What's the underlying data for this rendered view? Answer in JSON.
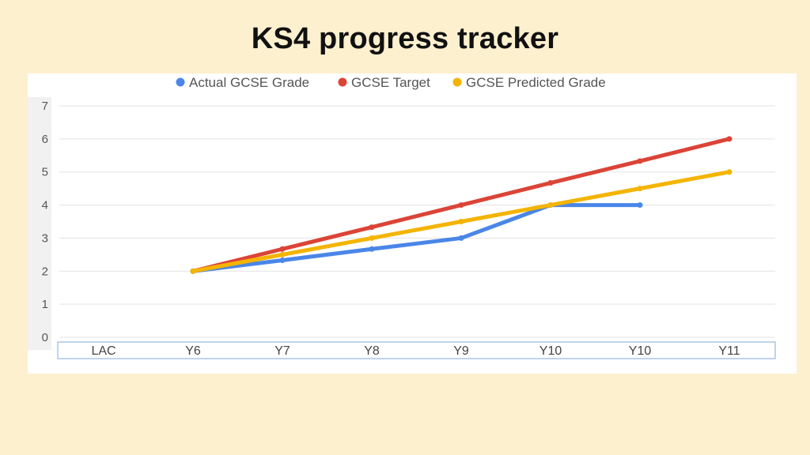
{
  "slide": {
    "title": "KS4 progress tracker"
  },
  "chart_data": {
    "type": "line",
    "categories": [
      "LAC",
      "Y6",
      "Y7",
      "Y8",
      "Y9",
      "Y10",
      "Y10",
      "Y11"
    ],
    "ylim": [
      0,
      7
    ],
    "yticks": [
      0,
      1,
      2,
      3,
      4,
      5,
      6,
      7
    ],
    "grid": true,
    "legend_position": "top-center",
    "series": [
      {
        "name": "Actual GCSE Grade",
        "color": "#4a86e8",
        "values": [
          null,
          2,
          2.33,
          2.67,
          3,
          4,
          4,
          null
        ]
      },
      {
        "name": "GCSE Target",
        "color": "#db4437",
        "values": [
          null,
          2,
          2.67,
          3.33,
          4,
          4.67,
          5.33,
          6
        ]
      },
      {
        "name": "GCSE Predicted Grade",
        "color": "#f4b400",
        "values": [
          null,
          2,
          2.5,
          3,
          3.5,
          4,
          4.5,
          5
        ]
      }
    ]
  }
}
